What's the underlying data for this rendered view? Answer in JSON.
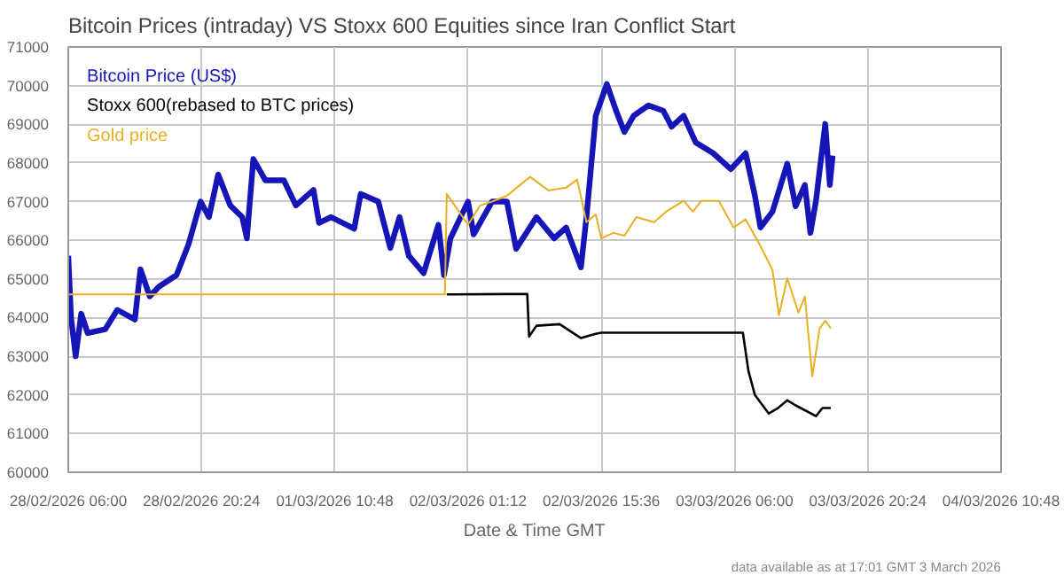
{
  "chart_data": {
    "type": "line",
    "title": "Bitcoin Prices (intraday) VS  Stoxx 600 Equities since Iran Conflict Start",
    "xlabel": "Date & Time GMT",
    "annotations": [
      "data available as at 17:01 GMT 3 March 2026"
    ],
    "xlim": [
      "2026-02-28T06:00",
      "2026-03-04T10:48"
    ],
    "xticks": [
      {
        "value": "2026-02-28T06:00",
        "label": "28/02/2026 06:00"
      },
      {
        "value": "2026-02-28T20:24",
        "label": "28/02/2026 20:24"
      },
      {
        "value": "2026-03-01T10:48",
        "label": "01/03/2026 10:48"
      },
      {
        "value": "2026-03-02T01:12",
        "label": "02/03/2026 01:12"
      },
      {
        "value": "2026-03-02T15:36",
        "label": "02/03/2026 15:36"
      },
      {
        "value": "2026-03-03T06:00",
        "label": "03/03/2026 06:00"
      },
      {
        "value": "2026-03-03T20:24",
        "label": "03/03/2026 20:24"
      },
      {
        "value": "2026-03-04T10:48",
        "label": "04/03/2026 10:48"
      }
    ],
    "ylim": [
      60000,
      71000
    ],
    "yticks": [
      60000,
      61000,
      62000,
      63000,
      64000,
      65000,
      66000,
      67000,
      68000,
      69000,
      70000,
      71000
    ],
    "grid": true,
    "legend": "top left",
    "series": [
      {
        "name": "Bitcoin Price (US$)",
        "color": "#1515b8",
        "x": [
          "2026-02-28T06:00",
          "2026-02-28T06:18",
          "2026-02-28T06:48",
          "2026-02-28T07:24",
          "2026-02-28T08:06",
          "2026-02-28T10:00",
          "2026-02-28T11:18",
          "2026-02-28T13:12",
          "2026-02-28T13:48",
          "2026-02-28T14:48",
          "2026-02-28T15:48",
          "2026-02-28T17:42",
          "2026-02-28T19:00",
          "2026-02-28T20:18",
          "2026-02-28T21:12",
          "2026-02-28T22:12",
          "2026-02-28T23:30",
          "2026-03-01T00:48",
          "2026-03-01T01:18",
          "2026-03-01T02:00",
          "2026-03-01T03:18",
          "2026-03-01T05:18",
          "2026-03-01T06:36",
          "2026-03-01T08:30",
          "2026-03-01T09:06",
          "2026-03-01T10:24",
          "2026-03-01T12:54",
          "2026-03-01T13:36",
          "2026-03-01T15:30",
          "2026-03-01T16:48",
          "2026-03-01T17:48",
          "2026-03-01T18:48",
          "2026-03-01T20:24",
          "2026-03-01T22:00",
          "2026-03-01T22:36",
          "2026-03-01T23:18",
          "2026-03-02T01:12",
          "2026-03-02T01:48",
          "2026-03-02T03:48",
          "2026-03-02T05:24",
          "2026-03-02T06:24",
          "2026-03-02T08:36",
          "2026-03-02T10:30",
          "2026-03-02T11:48",
          "2026-03-02T13:24",
          "2026-03-02T14:00",
          "2026-03-02T15:00",
          "2026-03-02T16:12",
          "2026-03-02T17:12",
          "2026-03-02T18:06",
          "2026-03-02T19:06",
          "2026-03-02T20:42",
          "2026-03-02T22:18",
          "2026-03-02T23:12",
          "2026-03-03T00:30",
          "2026-03-03T01:48",
          "2026-03-03T03:42",
          "2026-03-03T05:36",
          "2026-03-03T07:12",
          "2026-03-03T08:12",
          "2026-03-03T08:48",
          "2026-03-03T10:06",
          "2026-03-03T11:42",
          "2026-03-03T12:36",
          "2026-03-03T13:36",
          "2026-03-03T14:12",
          "2026-03-03T14:48",
          "2026-03-03T15:48",
          "2026-03-03T16:18",
          "2026-03-03T16:36"
        ],
        "values": [
          65600,
          64000,
          63000,
          64100,
          63600,
          63700,
          64200,
          63950,
          65250,
          64550,
          64800,
          65100,
          65900,
          67000,
          66600,
          67700,
          66900,
          66600,
          66050,
          68100,
          67550,
          67550,
          66900,
          67300,
          66450,
          66600,
          66300,
          67200,
          67000,
          65800,
          66600,
          65600,
          65150,
          66400,
          65100,
          66050,
          67000,
          66150,
          67000,
          67000,
          65780,
          66600,
          66050,
          66330,
          65300,
          66600,
          69220,
          70040,
          69350,
          68800,
          69220,
          69490,
          69350,
          68940,
          69220,
          68530,
          68250,
          67840,
          68250,
          67150,
          66330,
          66740,
          67980,
          66880,
          67430,
          66190,
          67020,
          69010,
          67430,
          68190
        ]
      },
      {
        "name": "Stoxx 600(rebased to BTC prices)",
        "color": "#000000",
        "x": [
          "2026-03-01T22:54",
          "2026-03-02T05:24",
          "2026-03-02T07:36",
          "2026-03-02T07:48",
          "2026-03-02T08:36",
          "2026-03-02T11:06",
          "2026-03-02T13:24",
          "2026-03-02T15:00",
          "2026-03-02T15:36",
          "2026-03-03T06:54",
          "2026-03-03T07:30",
          "2026-03-03T08:12",
          "2026-03-03T09:42",
          "2026-03-03T10:42",
          "2026-03-03T11:42",
          "2026-03-03T12:36",
          "2026-03-03T14:48",
          "2026-03-03T15:30",
          "2026-03-03T16:24"
        ],
        "values": [
          64600,
          64610,
          64610,
          63510,
          63790,
          63830,
          63470,
          63580,
          63610,
          63610,
          62620,
          62000,
          61520,
          61660,
          61860,
          61730,
          61450,
          61660,
          61660
        ]
      },
      {
        "name": "Gold price",
        "color": "#e8b020",
        "x": [
          "2026-02-28T06:00",
          "2026-03-01T22:42",
          "2026-03-01T22:54",
          "2026-03-02T01:12",
          "2026-03-02T02:30",
          "2026-03-02T03:48",
          "2026-03-02T05:24",
          "2026-03-02T07:54",
          "2026-03-02T09:54",
          "2026-03-02T11:48",
          "2026-03-02T13:00",
          "2026-03-02T14:00",
          "2026-03-02T15:00",
          "2026-03-02T15:36",
          "2026-03-02T16:54",
          "2026-03-02T18:06",
          "2026-03-02T19:24",
          "2026-03-02T21:18",
          "2026-03-02T22:36",
          "2026-03-03T00:30",
          "2026-03-03T01:30",
          "2026-03-03T02:24",
          "2026-03-03T04:18",
          "2026-03-03T05:54",
          "2026-03-03T07:12",
          "2026-03-03T08:48",
          "2026-03-03T10:06",
          "2026-03-03T10:48",
          "2026-03-03T11:42",
          "2026-03-03T12:54",
          "2026-03-03T13:36",
          "2026-03-03T14:24",
          "2026-03-03T15:12",
          "2026-03-03T15:48",
          "2026-03-03T16:24"
        ],
        "values": [
          64600,
          64600,
          67200,
          66400,
          66900,
          67000,
          67150,
          67640,
          67290,
          67360,
          67570,
          66470,
          66670,
          66050,
          66190,
          66120,
          66600,
          66470,
          66740,
          67020,
          66740,
          67020,
          67020,
          66330,
          66540,
          65850,
          65230,
          64060,
          65020,
          64130,
          64540,
          62480,
          63720,
          63920,
          63720
        ]
      }
    ]
  }
}
